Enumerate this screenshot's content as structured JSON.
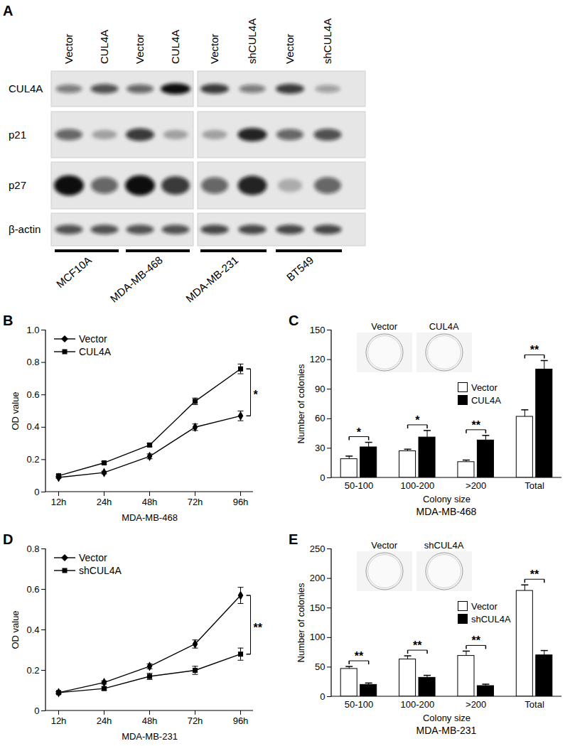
{
  "blot": {
    "panel_label": "A",
    "lanes": [
      "Vector",
      "CUL4A",
      "Vector",
      "CUL4A",
      "Vector",
      "shCUL4A",
      "Vector",
      "shCUL4A"
    ],
    "cell_lines": [
      "MCF10A",
      "MDA-MB-468",
      "MDA-MB-231",
      "BT549"
    ],
    "rows": [
      {
        "label": "CUL4A",
        "intensity": [
          0.5,
          0.7,
          0.6,
          1.0,
          0.8,
          0.5,
          0.8,
          0.35
        ]
      },
      {
        "label": "p21",
        "intensity": [
          0.6,
          0.3,
          0.8,
          0.3,
          0.3,
          0.9,
          0.6,
          0.7
        ]
      },
      {
        "label": "p27",
        "intensity": [
          1.0,
          0.6,
          1.0,
          0.8,
          0.6,
          0.9,
          0.25,
          0.6
        ]
      },
      {
        "label": "β-actin",
        "intensity": [
          0.7,
          0.7,
          0.7,
          0.7,
          0.75,
          0.75,
          0.75,
          0.75
        ]
      }
    ]
  },
  "chart_data": [
    {
      "panel_label": "B",
      "type": "line",
      "xlabel": "MDA-MB-468",
      "ylabel": "OD value",
      "categories": [
        "12h",
        "24h",
        "48h",
        "72h",
        "96h"
      ],
      "series": [
        {
          "name": "Vector",
          "color": "#000000",
          "marker": "diamond",
          "values": [
            0.09,
            0.12,
            0.22,
            0.4,
            0.47
          ],
          "errors": [
            0.005,
            0.008,
            0.015,
            0.02,
            0.03
          ]
        },
        {
          "name": "CUL4A",
          "color": "#000000",
          "marker": "square",
          "values": [
            0.1,
            0.18,
            0.29,
            0.56,
            0.76
          ],
          "errors": [
            0.005,
            0.008,
            0.01,
            0.02,
            0.03
          ]
        }
      ],
      "ylim": [
        0,
        1
      ],
      "yticks": [
        0,
        0.2,
        0.4,
        0.6,
        0.8,
        {
          "value": 1,
          "label": "1.0"
        }
      ],
      "legend": "top-left",
      "significance": [
        {
          "category": "96h",
          "label": "*"
        }
      ]
    },
    {
      "panel_label": "C",
      "type": "bar",
      "xlabel": "Colony size",
      "caption": "MDA-MB-468",
      "ylabel": "Number of colonies",
      "categories": [
        "50-100",
        "100-200",
        ">200",
        "Total"
      ],
      "series": [
        {
          "name": "Vector",
          "color": "#ffffff",
          "values": [
            19,
            27,
            16,
            62
          ],
          "errors": [
            3,
            2,
            2,
            7
          ]
        },
        {
          "name": "CUL4A",
          "color": "#000000",
          "values": [
            31,
            41,
            38,
            110
          ],
          "errors": [
            5,
            7,
            5,
            9
          ]
        }
      ],
      "ylim": [
        0,
        150
      ],
      "yticks": [
        0,
        30,
        60,
        90,
        120,
        150
      ],
      "legend": "right",
      "significance": [
        "*",
        "*",
        "**",
        "**"
      ],
      "inset": {
        "labels": [
          "Vector",
          "CUL4A"
        ]
      }
    },
    {
      "panel_label": "D",
      "type": "line",
      "xlabel": "MDA-MB-231",
      "ylabel": "OD value",
      "categories": [
        "12h",
        "24h",
        "48h",
        "72h",
        "96h"
      ],
      "series": [
        {
          "name": "Vector",
          "color": "#000000",
          "marker": "diamond",
          "values": [
            0.09,
            0.14,
            0.22,
            0.33,
            0.57
          ],
          "errors": [
            0.005,
            0.008,
            0.012,
            0.02,
            0.04
          ]
        },
        {
          "name": "shCUL4A",
          "color": "#000000",
          "marker": "square",
          "values": [
            0.09,
            0.11,
            0.17,
            0.2,
            0.28
          ],
          "errors": [
            0.005,
            0.008,
            0.015,
            0.02,
            0.03
          ]
        }
      ],
      "ylim": [
        0,
        0.8
      ],
      "yticks": [
        0,
        0.2,
        0.4,
        0.6,
        0.8
      ],
      "legend": "top-left",
      "significance": [
        {
          "category": "96h",
          "label": "**"
        }
      ]
    },
    {
      "panel_label": "E",
      "type": "bar",
      "xlabel": "Colony size",
      "caption": "MDA-MB-231",
      "ylabel": "Number of colonies",
      "categories": [
        "50-100",
        "100-200",
        ">200",
        "Total"
      ],
      "series": [
        {
          "name": "Vector",
          "color": "#ffffff",
          "values": [
            47,
            63,
            69,
            179
          ],
          "errors": [
            4,
            6,
            8,
            10
          ]
        },
        {
          "name": "shCUL4A",
          "color": "#000000",
          "values": [
            20,
            32,
            18,
            70
          ],
          "errors": [
            3,
            4,
            3,
            8
          ]
        }
      ],
      "ylim": [
        0,
        250
      ],
      "yticks": [
        0,
        50,
        100,
        150,
        200,
        250
      ],
      "legend": "right",
      "significance": [
        "**",
        "**",
        "**",
        "**"
      ],
      "inset": {
        "labels": [
          "Vector",
          "shCUL4A"
        ]
      }
    }
  ]
}
